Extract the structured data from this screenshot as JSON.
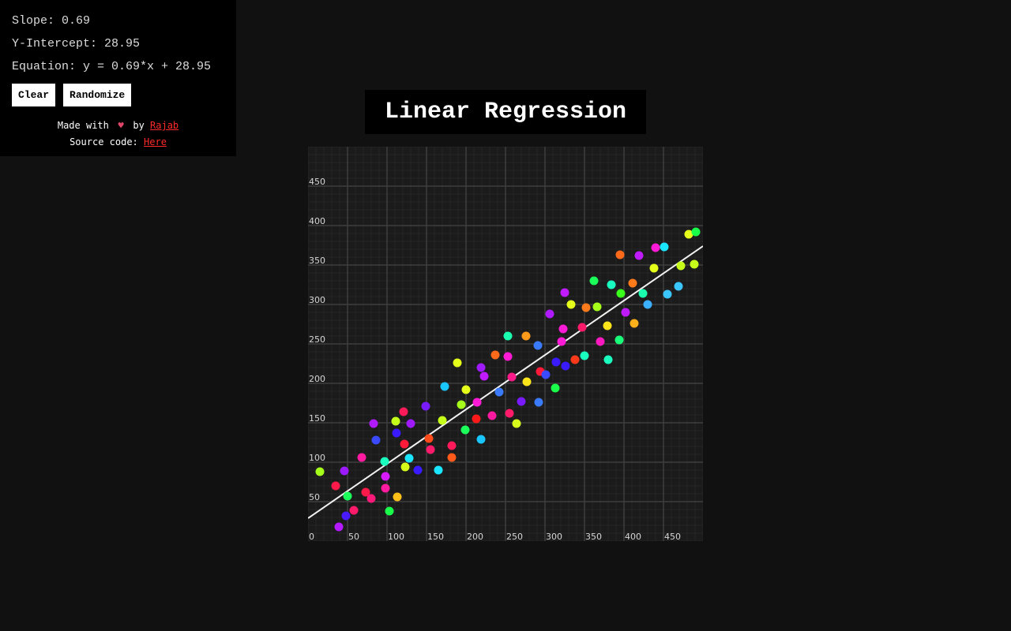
{
  "stats": {
    "slope": "Slope: 0.69",
    "intercept": "Y-Intercept: 28.95",
    "equation": "Equation: y = 0.69*x + 28.95"
  },
  "buttons": {
    "clear": "Clear",
    "randomize": "Randomize"
  },
  "credits": {
    "made_with": "Made with",
    "by": "by",
    "author": "Rajab",
    "source_label": "Source code:",
    "source_link": "Here"
  },
  "title": "Linear Regression",
  "chart_data": {
    "type": "scatter",
    "xlim": [
      0,
      500
    ],
    "ylim": [
      0,
      500
    ],
    "x_ticks": [
      0,
      50,
      100,
      150,
      200,
      250,
      300,
      350,
      400,
      450
    ],
    "y_ticks": [
      50,
      100,
      150,
      200,
      250,
      300,
      350,
      400,
      450
    ],
    "grid": true,
    "regression_line": {
      "slope": 0.69,
      "intercept": 28.95
    },
    "points": [
      {
        "x": 15,
        "y": 88,
        "color": "#a6ff1a"
      },
      {
        "x": 35,
        "y": 70,
        "color": "#ff1a4a"
      },
      {
        "x": 46,
        "y": 89,
        "color": "#9b1aff"
      },
      {
        "x": 39,
        "y": 18,
        "color": "#b51aff"
      },
      {
        "x": 48,
        "y": 32,
        "color": "#4a1aff"
      },
      {
        "x": 50,
        "y": 57,
        "color": "#1aff5a"
      },
      {
        "x": 58,
        "y": 39,
        "color": "#ff1a6a"
      },
      {
        "x": 68,
        "y": 106,
        "color": "#ff1aa0"
      },
      {
        "x": 73,
        "y": 62,
        "color": "#ff1a4a"
      },
      {
        "x": 80,
        "y": 54,
        "color": "#ff1a7a"
      },
      {
        "x": 83,
        "y": 149,
        "color": "#b01aff"
      },
      {
        "x": 86,
        "y": 128,
        "color": "#3a4aff"
      },
      {
        "x": 97,
        "y": 101,
        "color": "#1affc0"
      },
      {
        "x": 98,
        "y": 82,
        "color": "#d81aff"
      },
      {
        "x": 98,
        "y": 67,
        "color": "#ff1aa0"
      },
      {
        "x": 103,
        "y": 38,
        "color": "#1aff4a"
      },
      {
        "x": 111,
        "y": 152,
        "color": "#c6ff1a"
      },
      {
        "x": 112,
        "y": 137,
        "color": "#3a1aff"
      },
      {
        "x": 113,
        "y": 56,
        "color": "#ffc01a"
      },
      {
        "x": 121,
        "y": 164,
        "color": "#ff1a5a"
      },
      {
        "x": 122,
        "y": 123,
        "color": "#ff1a3a"
      },
      {
        "x": 123,
        "y": 94,
        "color": "#d6ff1a"
      },
      {
        "x": 128,
        "y": 105,
        "color": "#1ae6ff"
      },
      {
        "x": 130,
        "y": 149,
        "color": "#a01aff"
      },
      {
        "x": 139,
        "y": 90,
        "color": "#3a1aff"
      },
      {
        "x": 149,
        "y": 171,
        "color": "#7a1aff"
      },
      {
        "x": 153,
        "y": 130,
        "color": "#ff4a1a"
      },
      {
        "x": 155,
        "y": 116,
        "color": "#ff1a6a"
      },
      {
        "x": 165,
        "y": 90,
        "color": "#1ae6ff"
      },
      {
        "x": 170,
        "y": 153,
        "color": "#c6ff1a"
      },
      {
        "x": 173,
        "y": 196,
        "color": "#1ac6ff"
      },
      {
        "x": 182,
        "y": 121,
        "color": "#ff1a5a"
      },
      {
        "x": 182,
        "y": 106,
        "color": "#ff5a1a"
      },
      {
        "x": 189,
        "y": 226,
        "color": "#e6ff1a"
      },
      {
        "x": 194,
        "y": 173,
        "color": "#a6ff1a"
      },
      {
        "x": 199,
        "y": 141,
        "color": "#1aff5a"
      },
      {
        "x": 200,
        "y": 192,
        "color": "#e6ff1a"
      },
      {
        "x": 213,
        "y": 155,
        "color": "#ff1a1a"
      },
      {
        "x": 214,
        "y": 176,
        "color": "#ff1ad6"
      },
      {
        "x": 219,
        "y": 220,
        "color": "#a01aff"
      },
      {
        "x": 219,
        "y": 129,
        "color": "#1ac6ff"
      },
      {
        "x": 223,
        "y": 209,
        "color": "#c01aff"
      },
      {
        "x": 233,
        "y": 159,
        "color": "#ff1aa0"
      },
      {
        "x": 237,
        "y": 236,
        "color": "#ff6a1a"
      },
      {
        "x": 242,
        "y": 189,
        "color": "#3a7aff"
      },
      {
        "x": 253,
        "y": 260,
        "color": "#1affb0"
      },
      {
        "x": 253,
        "y": 234,
        "color": "#ff1ad6"
      },
      {
        "x": 255,
        "y": 162,
        "color": "#ff1a6a"
      },
      {
        "x": 258,
        "y": 208,
        "color": "#ff1a8a"
      },
      {
        "x": 264,
        "y": 149,
        "color": "#d6ff1a"
      },
      {
        "x": 270,
        "y": 177,
        "color": "#7a1aff"
      },
      {
        "x": 276,
        "y": 260,
        "color": "#ff9a1a"
      },
      {
        "x": 277,
        "y": 202,
        "color": "#ffe61a"
      },
      {
        "x": 291,
        "y": 248,
        "color": "#3a7aff"
      },
      {
        "x": 292,
        "y": 176,
        "color": "#3a7aff"
      },
      {
        "x": 294,
        "y": 215,
        "color": "#ff1a3a"
      },
      {
        "x": 301,
        "y": 211,
        "color": "#3a4aff"
      },
      {
        "x": 306,
        "y": 288,
        "color": "#b01aff"
      },
      {
        "x": 313,
        "y": 194,
        "color": "#1aff4a"
      },
      {
        "x": 314,
        "y": 227,
        "color": "#3a1aff"
      },
      {
        "x": 321,
        "y": 253,
        "color": "#ff1ad6"
      },
      {
        "x": 323,
        "y": 269,
        "color": "#ff1ad6"
      },
      {
        "x": 325,
        "y": 315,
        "color": "#c01aff"
      },
      {
        "x": 326,
        "y": 222,
        "color": "#3a1aff"
      },
      {
        "x": 333,
        "y": 300,
        "color": "#e6ff1a"
      },
      {
        "x": 338,
        "y": 230,
        "color": "#ff3a1a"
      },
      {
        "x": 347,
        "y": 271,
        "color": "#ff1a6a"
      },
      {
        "x": 350,
        "y": 235,
        "color": "#1affc0"
      },
      {
        "x": 352,
        "y": 296,
        "color": "#ff7a1a"
      },
      {
        "x": 362,
        "y": 330,
        "color": "#1aff5a"
      },
      {
        "x": 366,
        "y": 297,
        "color": "#a6ff1a"
      },
      {
        "x": 370,
        "y": 253,
        "color": "#ff1ac0"
      },
      {
        "x": 379,
        "y": 273,
        "color": "#ffe61a"
      },
      {
        "x": 380,
        "y": 230,
        "color": "#1affc0"
      },
      {
        "x": 384,
        "y": 325,
        "color": "#1affc0"
      },
      {
        "x": 394,
        "y": 255,
        "color": "#1aff7a"
      },
      {
        "x": 395,
        "y": 363,
        "color": "#ff6a1a"
      },
      {
        "x": 396,
        "y": 314,
        "color": "#3aff1a"
      },
      {
        "x": 402,
        "y": 290,
        "color": "#c01aff"
      },
      {
        "x": 411,
        "y": 327,
        "color": "#ff7a1a"
      },
      {
        "x": 413,
        "y": 276,
        "color": "#ffb01a"
      },
      {
        "x": 419,
        "y": 362,
        "color": "#c01aff"
      },
      {
        "x": 424,
        "y": 314,
        "color": "#1affb0"
      },
      {
        "x": 430,
        "y": 300,
        "color": "#3ab0ff"
      },
      {
        "x": 438,
        "y": 346,
        "color": "#e6ff1a"
      },
      {
        "x": 440,
        "y": 372,
        "color": "#ff1ad6"
      },
      {
        "x": 451,
        "y": 373,
        "color": "#1ae6ff"
      },
      {
        "x": 455,
        "y": 313,
        "color": "#3ac6ff"
      },
      {
        "x": 469,
        "y": 323,
        "color": "#3ac6ff"
      },
      {
        "x": 472,
        "y": 349,
        "color": "#c6ff1a"
      },
      {
        "x": 482,
        "y": 389,
        "color": "#e6ff1a"
      },
      {
        "x": 489,
        "y": 351,
        "color": "#c6ff1a"
      },
      {
        "x": 491,
        "y": 392,
        "color": "#1aff4a"
      }
    ]
  }
}
